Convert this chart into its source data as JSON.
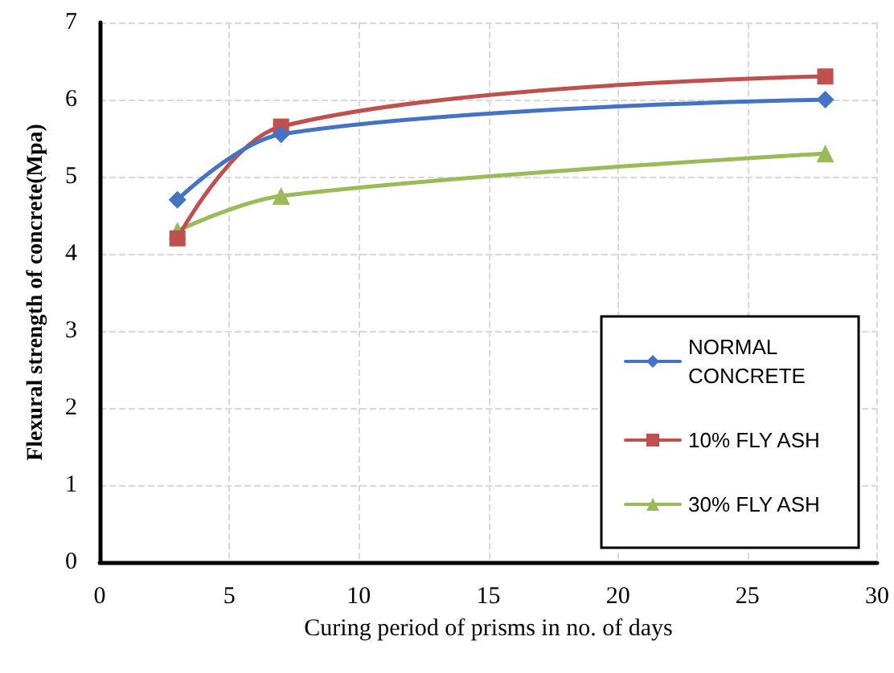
{
  "chart_data": {
    "type": "line",
    "xlabel": "Curing period of prisms in no. of days",
    "ylabel": "Flexural strength of concrete(Mpa)",
    "x": [
      3,
      7,
      28
    ],
    "series": [
      {
        "name": "NORMAL CONCRETE",
        "color": "#4472c4",
        "marker": "diamond",
        "values": [
          4.7,
          5.55,
          6.0
        ]
      },
      {
        "name": "10% FLY ASH",
        "color": "#c0504d",
        "marker": "square",
        "values": [
          4.2,
          5.65,
          6.3
        ]
      },
      {
        "name": "30% FLY ASH",
        "color": "#9bbb59",
        "marker": "triangle",
        "values": [
          4.3,
          4.75,
          5.3
        ]
      }
    ],
    "xlim": [
      0,
      30
    ],
    "xticks": [
      0,
      5,
      10,
      15,
      20,
      25,
      30
    ],
    "ylim": [
      0,
      7
    ],
    "yticks": [
      0,
      1,
      2,
      3,
      4,
      5,
      6,
      7
    ],
    "grid": true,
    "legend": "bottom right",
    "line_style": "solid"
  }
}
